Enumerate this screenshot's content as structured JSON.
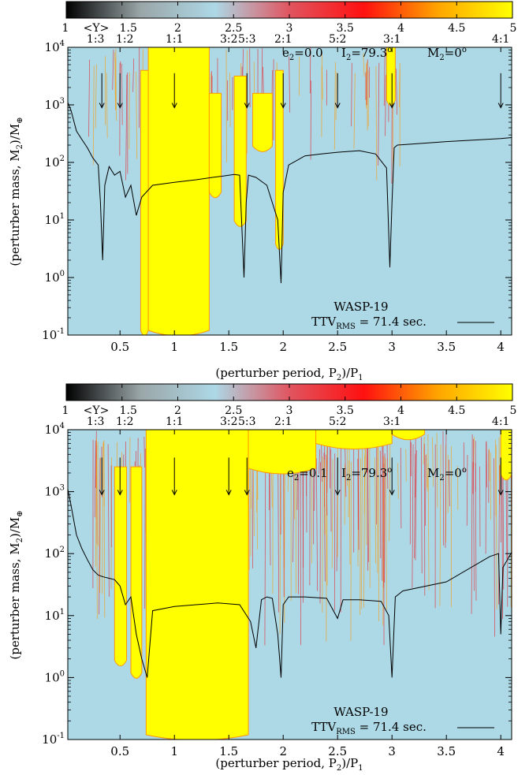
{
  "colors": {
    "background": "#add8e6",
    "chaotic": "#ffff00",
    "transition_orange": "#ff9900",
    "transition_red": "#e8202a",
    "curve": "#000000"
  },
  "colorbar": {
    "stops": [
      "#000000",
      "#9aa6a8",
      "#add8e6",
      "#e05560",
      "#ff1010",
      "#ffa500",
      "#ffff00"
    ],
    "range": [
      1,
      5
    ],
    "ticks": [
      "1",
      "1.5",
      "2",
      "2.5",
      "3",
      "3.5",
      "4",
      "4.5",
      "5"
    ],
    "symbol": "<Y>"
  },
  "chart_data": [
    {
      "type": "heatmap",
      "panel": "top",
      "colorbar_label": "<Y>",
      "params": {
        "e2": "e2=0.0",
        "I2": "I2=79.3°",
        "M2": "M2=0°"
      },
      "params_text": {
        "e_main": "e",
        "e_sub": "2",
        "e_val": "=0.0",
        "I_main": "I",
        "I_sub": "2",
        "I_val": "=79.3",
        "M_main": "M",
        "M_sub": "2",
        "M_val": "=0"
      },
      "resonances": [
        "1:3",
        "1:2",
        "1:1",
        "3:2",
        "5:3",
        "2:1",
        "5:2",
        "3:1",
        "4:1"
      ],
      "resonance_positions": [
        0.333,
        0.5,
        1,
        1.5,
        1.667,
        2,
        2.5,
        3,
        4
      ],
      "arrows_x": [
        0.333,
        0.5,
        1,
        1.667,
        2,
        2.5,
        3,
        4
      ],
      "xlabel": "(perturber period, P2)/P1",
      "xlabel_parts": {
        "a": "(perturber period, P",
        "sub": "2",
        "b": ")/P",
        "sub2": "1"
      },
      "ylabel": "(perturber mass, M2)/M⊕",
      "ylabel_parts": {
        "a": "(perturber mass, M",
        "sub": "2",
        "b": ")/M",
        "sym": "⊕"
      },
      "x_ticks": [
        "0.5",
        "1",
        "1.5",
        "2",
        "2.5",
        "3",
        "3.5",
        "4"
      ],
      "x_tick_values": [
        0.5,
        1,
        1.5,
        2,
        2.5,
        3,
        3.5,
        4
      ],
      "y_ticks": [
        "10",
        "10",
        "10",
        "10",
        "10",
        "10"
      ],
      "y_tick_exponents": [
        "-1",
        "0",
        "1",
        "2",
        "3",
        "4"
      ],
      "xlim": [
        0.02,
        4.1
      ],
      "ylim_log10": [
        -1,
        4
      ],
      "legend": {
        "title": "WASP-19",
        "entry_main": "TTV",
        "entry_sub": "RMS",
        "entry_rest": " = 71.4 sec."
      },
      "curve": {
        "x": [
          0.02,
          0.05,
          0.1,
          0.15,
          0.2,
          0.25,
          0.3,
          0.32,
          0.34,
          0.36,
          0.4,
          0.45,
          0.5,
          0.55,
          0.6,
          0.65,
          0.7,
          0.8,
          1.0,
          1.2,
          1.35,
          1.45,
          1.55,
          1.6,
          1.64,
          1.66,
          1.68,
          1.75,
          1.85,
          1.95,
          1.98,
          2.0,
          2.05,
          2.2,
          2.35,
          2.5,
          2.7,
          2.85,
          2.95,
          2.98,
          3.0,
          3.02,
          3.05,
          3.5,
          4.0,
          4.1
        ],
        "y": [
          1100,
          800,
          350,
          250,
          180,
          120,
          90,
          20,
          2,
          40,
          85,
          60,
          70,
          25,
          40,
          12,
          25,
          40,
          45,
          50,
          55,
          58,
          62,
          60,
          1,
          20,
          60,
          55,
          40,
          10,
          0.8,
          30,
          90,
          130,
          140,
          150,
          160,
          140,
          80,
          1.5,
          20,
          180,
          200,
          230,
          260,
          270
        ]
      },
      "chaotic_regions": [
        {
          "x0": 0.76,
          "x1": 1.32,
          "ytop_log": 4,
          "ybot_log": -1
        },
        {
          "x0": 0.69,
          "x1": 0.76,
          "ytop_log": 3.6,
          "ybot_log": -1
        },
        {
          "x0": 1.32,
          "x1": 1.43,
          "ytop_log": 3.2,
          "ybot_log": 1.4
        },
        {
          "x0": 1.55,
          "x1": 1.66,
          "ytop_log": 3.5,
          "ybot_log": 0.9
        },
        {
          "x0": 1.72,
          "x1": 1.9,
          "ytop_log": 3.2,
          "ybot_log": 2.2
        },
        {
          "x0": 1.93,
          "x1": 2.0,
          "ytop_log": 3.6,
          "ybot_log": 0.5
        },
        {
          "x0": 2.95,
          "x1": 3.03,
          "ytop_log": 4,
          "ybot_log": 3.0
        }
      ]
    },
    {
      "type": "heatmap",
      "panel": "bottom",
      "colorbar_label": "<Y>",
      "params": {
        "e2": "e2=0.1",
        "I2": "I2=79.3°",
        "M2": "M2=0°"
      },
      "params_text": {
        "e_main": "e",
        "e_sub": "2",
        "e_val": "=0.1",
        "I_main": "I",
        "I_sub": "2",
        "I_val": "=79.3",
        "M_main": "M",
        "M_sub": "2",
        "M_val": "=0"
      },
      "resonances": [
        "1:3",
        "1:2",
        "1:1",
        "3:2",
        "5:3",
        "2:1",
        "5:2",
        "3:1",
        "4:1"
      ],
      "resonance_positions": [
        0.333,
        0.5,
        1,
        1.5,
        1.667,
        2,
        2.5,
        3,
        4
      ],
      "arrows_x": [
        0.333,
        0.5,
        1,
        1.5,
        1.667,
        2.5,
        3,
        4
      ],
      "xlabel": "(perturber period, P2)/P1",
      "xlabel_parts": {
        "a": "(perturber period, P",
        "sub": "2",
        "b": ")/P",
        "sub2": "1"
      },
      "ylabel": "(perturber mass, M2)/M⊕",
      "ylabel_parts": {
        "a": "(perturber mass, M",
        "sub": "2",
        "b": ")/M",
        "sym": "⊕"
      },
      "x_ticks": [
        "0.5",
        "1",
        "1.5",
        "2",
        "2.5",
        "3",
        "3.5",
        "4"
      ],
      "x_tick_values": [
        0.5,
        1,
        1.5,
        2,
        2.5,
        3,
        3.5,
        4
      ],
      "y_ticks": [
        "10",
        "10",
        "10",
        "10",
        "10",
        "10"
      ],
      "y_tick_exponents": [
        "-1",
        "0",
        "1",
        "2",
        "3",
        "4"
      ],
      "xlim": [
        0.02,
        4.1
      ],
      "ylim_log10": [
        -1,
        4
      ],
      "legend": {
        "title": "WASP-19",
        "entry_main": "TTV",
        "entry_sub": "RMS",
        "entry_rest": " = 71.4 sec."
      },
      "curve": {
        "x": [
          0.02,
          0.05,
          0.1,
          0.15,
          0.2,
          0.25,
          0.3,
          0.35,
          0.4,
          0.45,
          0.5,
          0.55,
          0.6,
          0.65,
          0.7,
          0.75,
          0.8,
          1.0,
          1.2,
          1.4,
          1.6,
          1.7,
          1.75,
          1.8,
          1.85,
          1.9,
          1.95,
          1.98,
          2.0,
          2.05,
          2.2,
          2.4,
          2.5,
          2.55,
          2.7,
          2.9,
          2.97,
          3.0,
          3.03,
          3.1,
          3.5,
          3.9,
          3.98,
          4.0,
          4.02,
          4.1
        ],
        "y": [
          1100,
          600,
          200,
          120,
          80,
          55,
          45,
          42,
          40,
          38,
          30,
          15,
          20,
          5,
          2,
          1,
          12,
          14,
          15,
          16,
          15,
          8,
          3,
          18,
          20,
          19,
          5,
          1,
          15,
          20,
          20,
          19,
          9,
          18,
          18,
          17,
          10,
          1,
          20,
          25,
          35,
          90,
          100,
          5,
          60,
          105
        ]
      },
      "chaotic_regions": [
        {
          "x0": 0.74,
          "x1": 1.68,
          "ytop_log": 4,
          "ybot_log": -1
        },
        {
          "x0": 0.45,
          "x1": 0.56,
          "ytop_log": 3.4,
          "ybot_log": 0.2
        },
        {
          "x0": 0.6,
          "x1": 0.7,
          "ytop_log": 3.4,
          "ybot_log": 0
        },
        {
          "x0": 1.68,
          "x1": 2.3,
          "ytop_log": 4,
          "ybot_log": 3.3
        },
        {
          "x0": 2.3,
          "x1": 3.0,
          "ytop_log": 4,
          "ybot_log": 3.7
        },
        {
          "x0": 3.0,
          "x1": 3.3,
          "ytop_log": 4,
          "ybot_log": 3.85
        },
        {
          "x0": 4.0,
          "x1": 4.1,
          "ytop_log": 4,
          "ybot_log": 3.2
        }
      ]
    }
  ]
}
